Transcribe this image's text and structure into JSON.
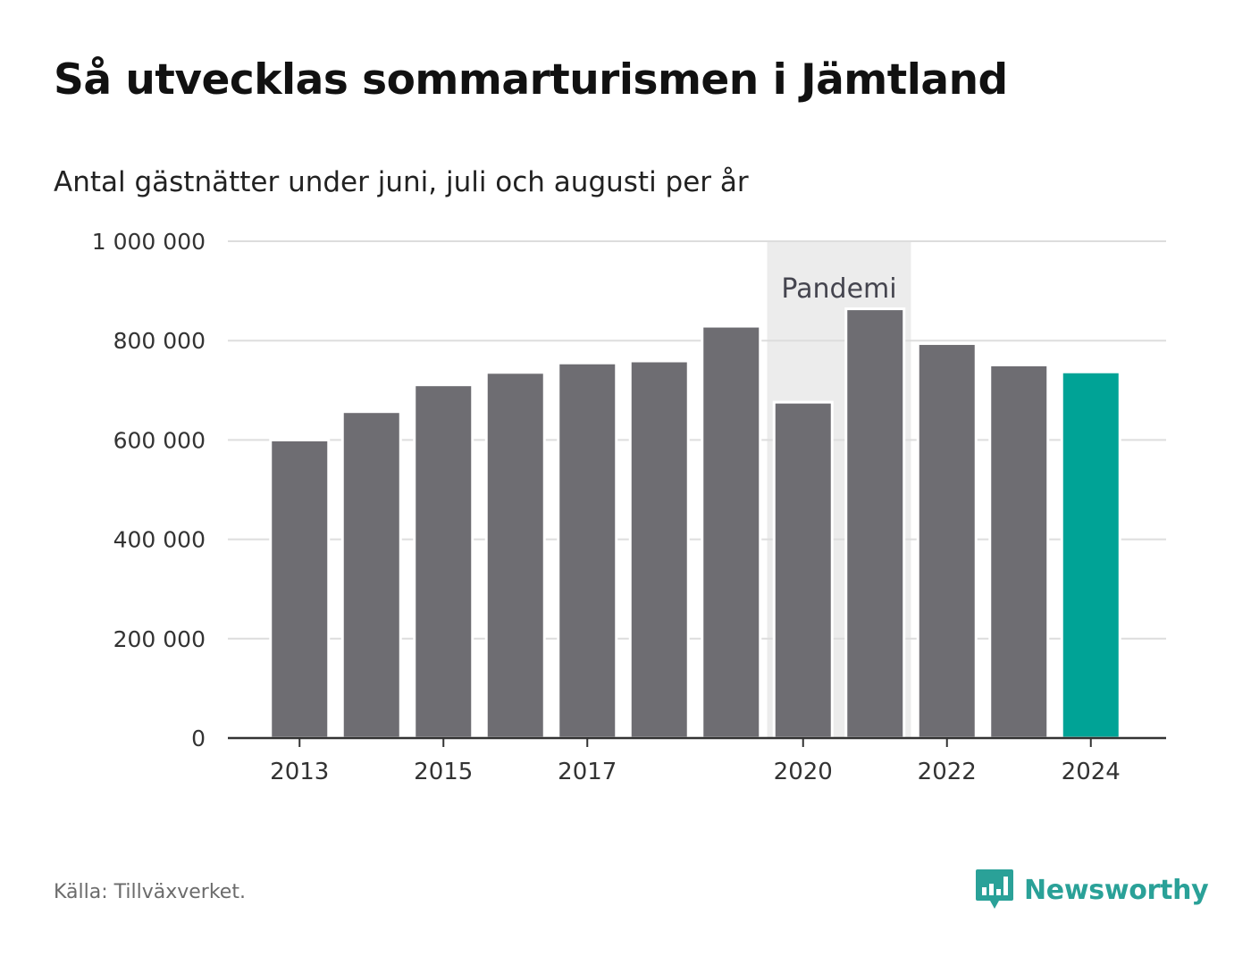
{
  "title": "Så utvecklas sommarturismen i Jämtland",
  "subtitle": "Antal gästnätter under juni, juli och augusti per år",
  "source": "Källa: Tillväxverket.",
  "brand": {
    "name": "Newsworthy",
    "icon": "bar-chart-speech-bubble-icon",
    "color": "#2aa198"
  },
  "colors": {
    "bar": "#6e6d72",
    "highlight": "#00a396",
    "shade": "#ececec",
    "grid": "#dddddd",
    "axis": "#333333"
  },
  "chart_data": {
    "type": "bar",
    "categories": [
      "2013",
      "2014",
      "2015",
      "2016",
      "2017",
      "2018",
      "2019",
      "2020",
      "2021",
      "2022",
      "2023",
      "2024"
    ],
    "values": [
      600000,
      657000,
      711000,
      736000,
      755000,
      759000,
      829000,
      676000,
      864000,
      794000,
      751000,
      737000
    ],
    "highlight_category": "2024",
    "ylim": [
      0,
      1000000
    ],
    "yticks": [
      0,
      200000,
      400000,
      600000,
      800000,
      1000000
    ],
    "ytick_labels": [
      "0",
      "200 000",
      "400 000",
      "600 000",
      "800 000",
      "1 000 000"
    ],
    "xtick_labels": [
      "2013",
      "2015",
      "2017",
      "2020",
      "2022",
      "2024"
    ],
    "annotation": {
      "label": "Pandemi",
      "from": "2020",
      "to": "2021"
    },
    "grid": true,
    "xlabel": "",
    "ylabel": ""
  }
}
